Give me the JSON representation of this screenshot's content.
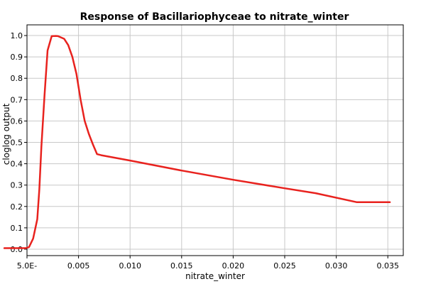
{
  "chart_data": {
    "type": "line",
    "title": "Response of Bacillariophyceae to nitrate_winter",
    "xlabel": "nitrate_winter",
    "ylabel": "cloglog output",
    "xlim": [
      -0.0,
      0.0365
    ],
    "ylim": [
      -0.03,
      1.05
    ],
    "grid": true,
    "x_ticks": [
      0.0,
      0.005,
      0.01,
      0.015,
      0.02,
      0.025,
      0.03,
      0.035
    ],
    "x_tick_labels": [
      "5.0E-",
      "0.005",
      "0.010",
      "0.015",
      "0.020",
      "0.025",
      "0.030",
      "0.035"
    ],
    "y_ticks": [
      0.0,
      0.1,
      0.2,
      0.3,
      0.4,
      0.5,
      0.6,
      0.7,
      0.8,
      0.9,
      1.0
    ],
    "y_tick_labels": [
      "0.0",
      "0.1",
      "0.2",
      "0.3",
      "0.4",
      "0.5",
      "0.6",
      "0.7",
      "0.8",
      "0.9",
      "1.0"
    ],
    "series": [
      {
        "color": "#e8221e",
        "x": [
          -0.0022,
          -0.0001,
          0.0002,
          0.0006,
          0.001,
          0.0012,
          0.0014,
          0.0017,
          0.002,
          0.0024,
          0.0028,
          0.003,
          0.0036,
          0.004,
          0.0044,
          0.0048,
          0.0052,
          0.0056,
          0.006,
          0.0064,
          0.0068,
          0.0072,
          0.01,
          0.015,
          0.02,
          0.025,
          0.028,
          0.032,
          0.0352
        ],
        "y": [
          0.005,
          0.005,
          0.01,
          0.05,
          0.14,
          0.28,
          0.48,
          0.72,
          0.93,
          0.997,
          0.998,
          0.997,
          0.985,
          0.955,
          0.9,
          0.82,
          0.7,
          0.6,
          0.54,
          0.49,
          0.445,
          0.44,
          0.415,
          0.368,
          0.325,
          0.285,
          0.262,
          0.22,
          0.22
        ]
      }
    ]
  }
}
